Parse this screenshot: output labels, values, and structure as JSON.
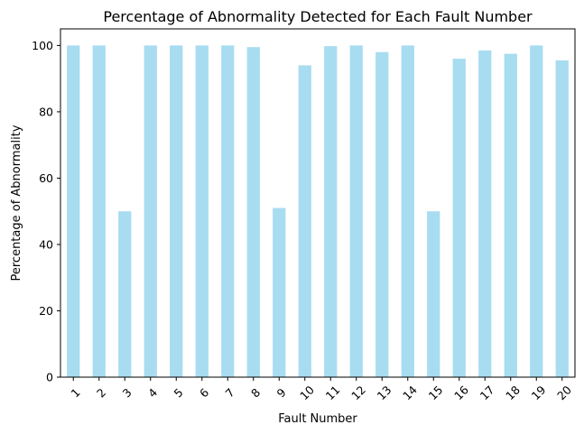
{
  "chart_data": {
    "type": "bar",
    "title": "Percentage of Abnormality Detected for Each Fault Number",
    "xlabel": "Fault Number",
    "ylabel": "Percentage of Abnormality",
    "categories": [
      "1",
      "2",
      "3",
      "4",
      "5",
      "6",
      "7",
      "8",
      "9",
      "10",
      "11",
      "12",
      "13",
      "14",
      "15",
      "16",
      "17",
      "18",
      "19",
      "20"
    ],
    "values": [
      100,
      100,
      50,
      100,
      100,
      100,
      100,
      99.5,
      51,
      94,
      99.8,
      100,
      98,
      100,
      50,
      96,
      98.5,
      97.5,
      100,
      95.5
    ],
    "ylim": [
      0,
      105
    ],
    "yticks": [
      0,
      20,
      40,
      60,
      80,
      100
    ],
    "bar_color": "#a8dcf0",
    "grid": false,
    "legend": "none",
    "xtick_rotation_deg": -45
  }
}
